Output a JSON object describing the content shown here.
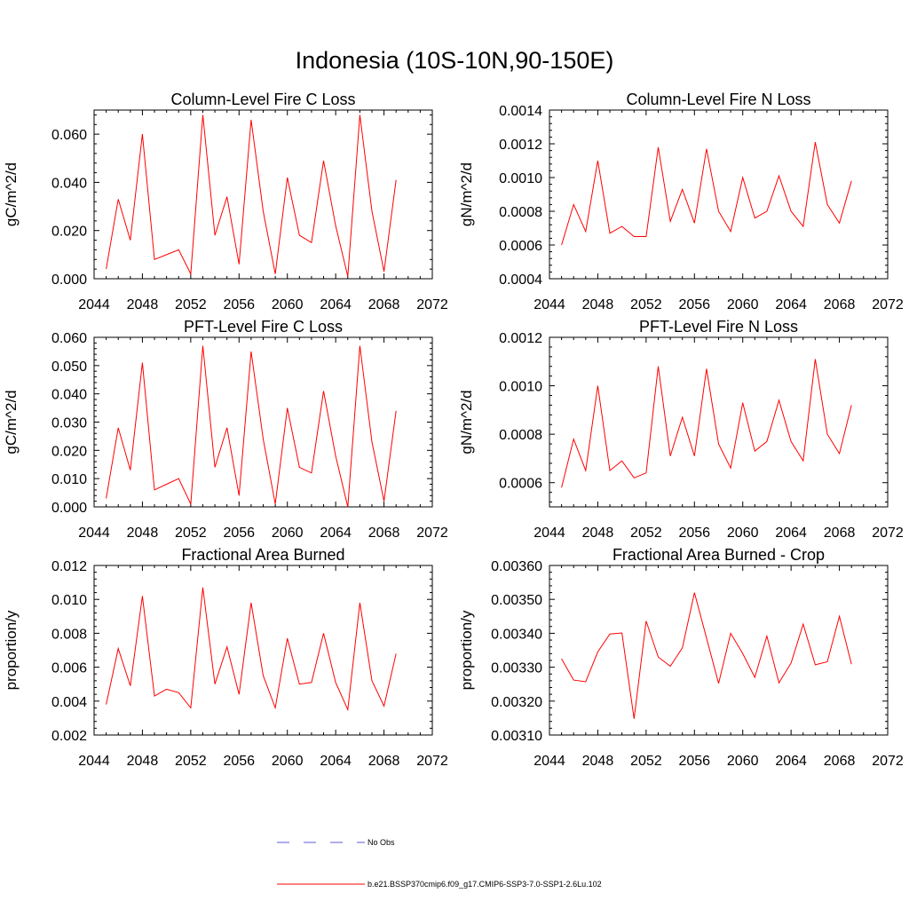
{
  "main_title": "Indonesia (10S-10N,90-150E)",
  "legend": [
    {
      "label": "No Obs",
      "color": "#5b5bd6",
      "dash": true
    },
    {
      "label": "b.e21.BSSP370cmip6.f09_g17.CMIP6-SSP3-7.0-SSP1-2.6Lu.102",
      "color": "#ff0000",
      "dash": false
    }
  ],
  "chart_data": [
    {
      "type": "line",
      "title": "Column-Level Fire C Loss",
      "ylabel": "gC/m^2/d",
      "xlim": [
        2044,
        2072
      ],
      "xticks": [
        "2044",
        "2048",
        "2052",
        "2056",
        "2060",
        "2064",
        "2068",
        "2072"
      ],
      "ylim": [
        0.0,
        0.07
      ],
      "yticks": [
        "0.000",
        "0.020",
        "0.040",
        "0.060"
      ],
      "ytick_values": [
        0.0,
        0.02,
        0.04,
        0.06
      ],
      "series": [
        {
          "color": "#ff0000",
          "x": [
            2045,
            2046,
            2047,
            2048,
            2049,
            2050,
            2051,
            2052,
            2053,
            2054,
            2055,
            2056,
            2057,
            2058,
            2059,
            2060,
            2061,
            2062,
            2063,
            2064,
            2065,
            2066,
            2067,
            2068,
            2069
          ],
          "y": [
            0.004,
            0.033,
            0.016,
            0.06,
            0.008,
            0.01,
            0.012,
            0.002,
            0.068,
            0.018,
            0.034,
            0.006,
            0.066,
            0.028,
            0.002,
            0.042,
            0.018,
            0.015,
            0.049,
            0.022,
            0.001,
            0.068,
            0.028,
            0.003,
            0.041
          ]
        }
      ]
    },
    {
      "type": "line",
      "title": "Column-Level Fire N Loss",
      "ylabel": "gN/m^2/d",
      "xlim": [
        2044,
        2072
      ],
      "xticks": [
        "2044",
        "2048",
        "2052",
        "2056",
        "2060",
        "2064",
        "2068",
        "2072"
      ],
      "ylim": [
        0.0004,
        0.0014
      ],
      "yticks": [
        "0.0004",
        "0.0006",
        "0.0008",
        "0.0010",
        "0.0012",
        "0.0014"
      ],
      "ytick_values": [
        0.0004,
        0.0006,
        0.0008,
        0.001,
        0.0012,
        0.0014
      ],
      "series": [
        {
          "color": "#ff0000",
          "x": [
            2045,
            2046,
            2047,
            2048,
            2049,
            2050,
            2051,
            2052,
            2053,
            2054,
            2055,
            2056,
            2057,
            2058,
            2059,
            2060,
            2061,
            2062,
            2063,
            2064,
            2065,
            2066,
            2067,
            2068,
            2069
          ],
          "y": [
            0.0006,
            0.00084,
            0.00068,
            0.0011,
            0.00067,
            0.00071,
            0.00065,
            0.00065,
            0.00118,
            0.00074,
            0.00093,
            0.00073,
            0.00117,
            0.0008,
            0.00068,
            0.001,
            0.00076,
            0.0008,
            0.00101,
            0.0008,
            0.00071,
            0.00121,
            0.00084,
            0.00073,
            0.00098
          ]
        }
      ]
    },
    {
      "type": "line",
      "title": "PFT-Level Fire C Loss",
      "ylabel": "gC/m^2/d",
      "xlim": [
        2044,
        2072
      ],
      "xticks": [
        "2044",
        "2048",
        "2052",
        "2056",
        "2060",
        "2064",
        "2068",
        "2072"
      ],
      "ylim": [
        0.0,
        0.06
      ],
      "yticks": [
        "0.000",
        "0.010",
        "0.020",
        "0.030",
        "0.040",
        "0.050",
        "0.060"
      ],
      "ytick_values": [
        0.0,
        0.01,
        0.02,
        0.03,
        0.04,
        0.05,
        0.06
      ],
      "series": [
        {
          "color": "#ff0000",
          "x": [
            2045,
            2046,
            2047,
            2048,
            2049,
            2050,
            2051,
            2052,
            2053,
            2054,
            2055,
            2056,
            2057,
            2058,
            2059,
            2060,
            2061,
            2062,
            2063,
            2064,
            2065,
            2066,
            2067,
            2068,
            2069
          ],
          "y": [
            0.003,
            0.028,
            0.013,
            0.051,
            0.006,
            0.008,
            0.01,
            0.001,
            0.057,
            0.014,
            0.028,
            0.004,
            0.055,
            0.024,
            0.001,
            0.035,
            0.014,
            0.012,
            0.041,
            0.018,
            0.0,
            0.057,
            0.023,
            0.002,
            0.034
          ]
        }
      ]
    },
    {
      "type": "line",
      "title": "PFT-Level Fire N Loss",
      "ylabel": "gN/m^2/d",
      "xlim": [
        2044,
        2072
      ],
      "xticks": [
        "2044",
        "2048",
        "2052",
        "2056",
        "2060",
        "2064",
        "2068",
        "2072"
      ],
      "ylim": [
        0.0005,
        0.0012
      ],
      "yticks": [
        "0.0006",
        "0.0008",
        "0.0010",
        "0.0012"
      ],
      "ytick_values": [
        0.0006,
        0.0008,
        0.001,
        0.0012
      ],
      "series": [
        {
          "color": "#ff0000",
          "x": [
            2045,
            2046,
            2047,
            2048,
            2049,
            2050,
            2051,
            2052,
            2053,
            2054,
            2055,
            2056,
            2057,
            2058,
            2059,
            2060,
            2061,
            2062,
            2063,
            2064,
            2065,
            2066,
            2067,
            2068,
            2069
          ],
          "y": [
            0.00058,
            0.00078,
            0.00065,
            0.001,
            0.00065,
            0.00069,
            0.00062,
            0.00064,
            0.00108,
            0.00071,
            0.00087,
            0.00071,
            0.00107,
            0.00076,
            0.00066,
            0.00093,
            0.00073,
            0.00077,
            0.00094,
            0.00077,
            0.00069,
            0.00111,
            0.0008,
            0.00072,
            0.00092
          ]
        }
      ]
    },
    {
      "type": "line",
      "title": "Fractional Area Burned",
      "ylabel": "proportion/y",
      "xlim": [
        2044,
        2072
      ],
      "xticks": [
        "2044",
        "2048",
        "2052",
        "2056",
        "2060",
        "2064",
        "2068",
        "2072"
      ],
      "ylim": [
        0.002,
        0.012
      ],
      "yticks": [
        "0.002",
        "0.004",
        "0.006",
        "0.008",
        "0.010",
        "0.012"
      ],
      "ytick_values": [
        0.002,
        0.004,
        0.006,
        0.008,
        0.01,
        0.012
      ],
      "series": [
        {
          "color": "#ff0000",
          "x": [
            2045,
            2046,
            2047,
            2048,
            2049,
            2050,
            2051,
            2052,
            2053,
            2054,
            2055,
            2056,
            2057,
            2058,
            2059,
            2060,
            2061,
            2062,
            2063,
            2064,
            2065,
            2066,
            2067,
            2068,
            2069
          ],
          "y": [
            0.0038,
            0.0071,
            0.0049,
            0.0102,
            0.0043,
            0.0047,
            0.0045,
            0.0036,
            0.0107,
            0.005,
            0.0072,
            0.0044,
            0.0098,
            0.0055,
            0.0036,
            0.0077,
            0.005,
            0.0051,
            0.008,
            0.0051,
            0.0035,
            0.0098,
            0.0052,
            0.0037,
            0.0068
          ]
        }
      ]
    },
    {
      "type": "line",
      "title": "Fractional Area Burned - Crop",
      "ylabel": "proportion/y",
      "xlim": [
        2044,
        2072
      ],
      "xticks": [
        "2044",
        "2048",
        "2052",
        "2056",
        "2060",
        "2064",
        "2068",
        "2072"
      ],
      "ylim": [
        0.0031,
        0.0036
      ],
      "yticks": [
        "0.00310",
        "0.00320",
        "0.00330",
        "0.00340",
        "0.00350",
        "0.00360"
      ],
      "ytick_values": [
        0.0031,
        0.0032,
        0.0033,
        0.0034,
        0.0035,
        0.0036
      ],
      "series": [
        {
          "color": "#ff0000",
          "x": [
            2045,
            2046,
            2047,
            2048,
            2049,
            2050,
            2051,
            2052,
            2053,
            2054,
            2055,
            2056,
            2057,
            2058,
            2059,
            2060,
            2061,
            2062,
            2063,
            2064,
            2065,
            2066,
            2067,
            2068,
            2069
          ],
          "y": [
            0.003325,
            0.003262,
            0.003257,
            0.003345,
            0.003398,
            0.003401,
            0.003148,
            0.003436,
            0.00333,
            0.003303,
            0.003357,
            0.00352,
            0.003386,
            0.003252,
            0.0034,
            0.00334,
            0.00327,
            0.003392,
            0.003254,
            0.003312,
            0.003427,
            0.003307,
            0.003316,
            0.00345,
            0.003309
          ]
        }
      ]
    }
  ]
}
